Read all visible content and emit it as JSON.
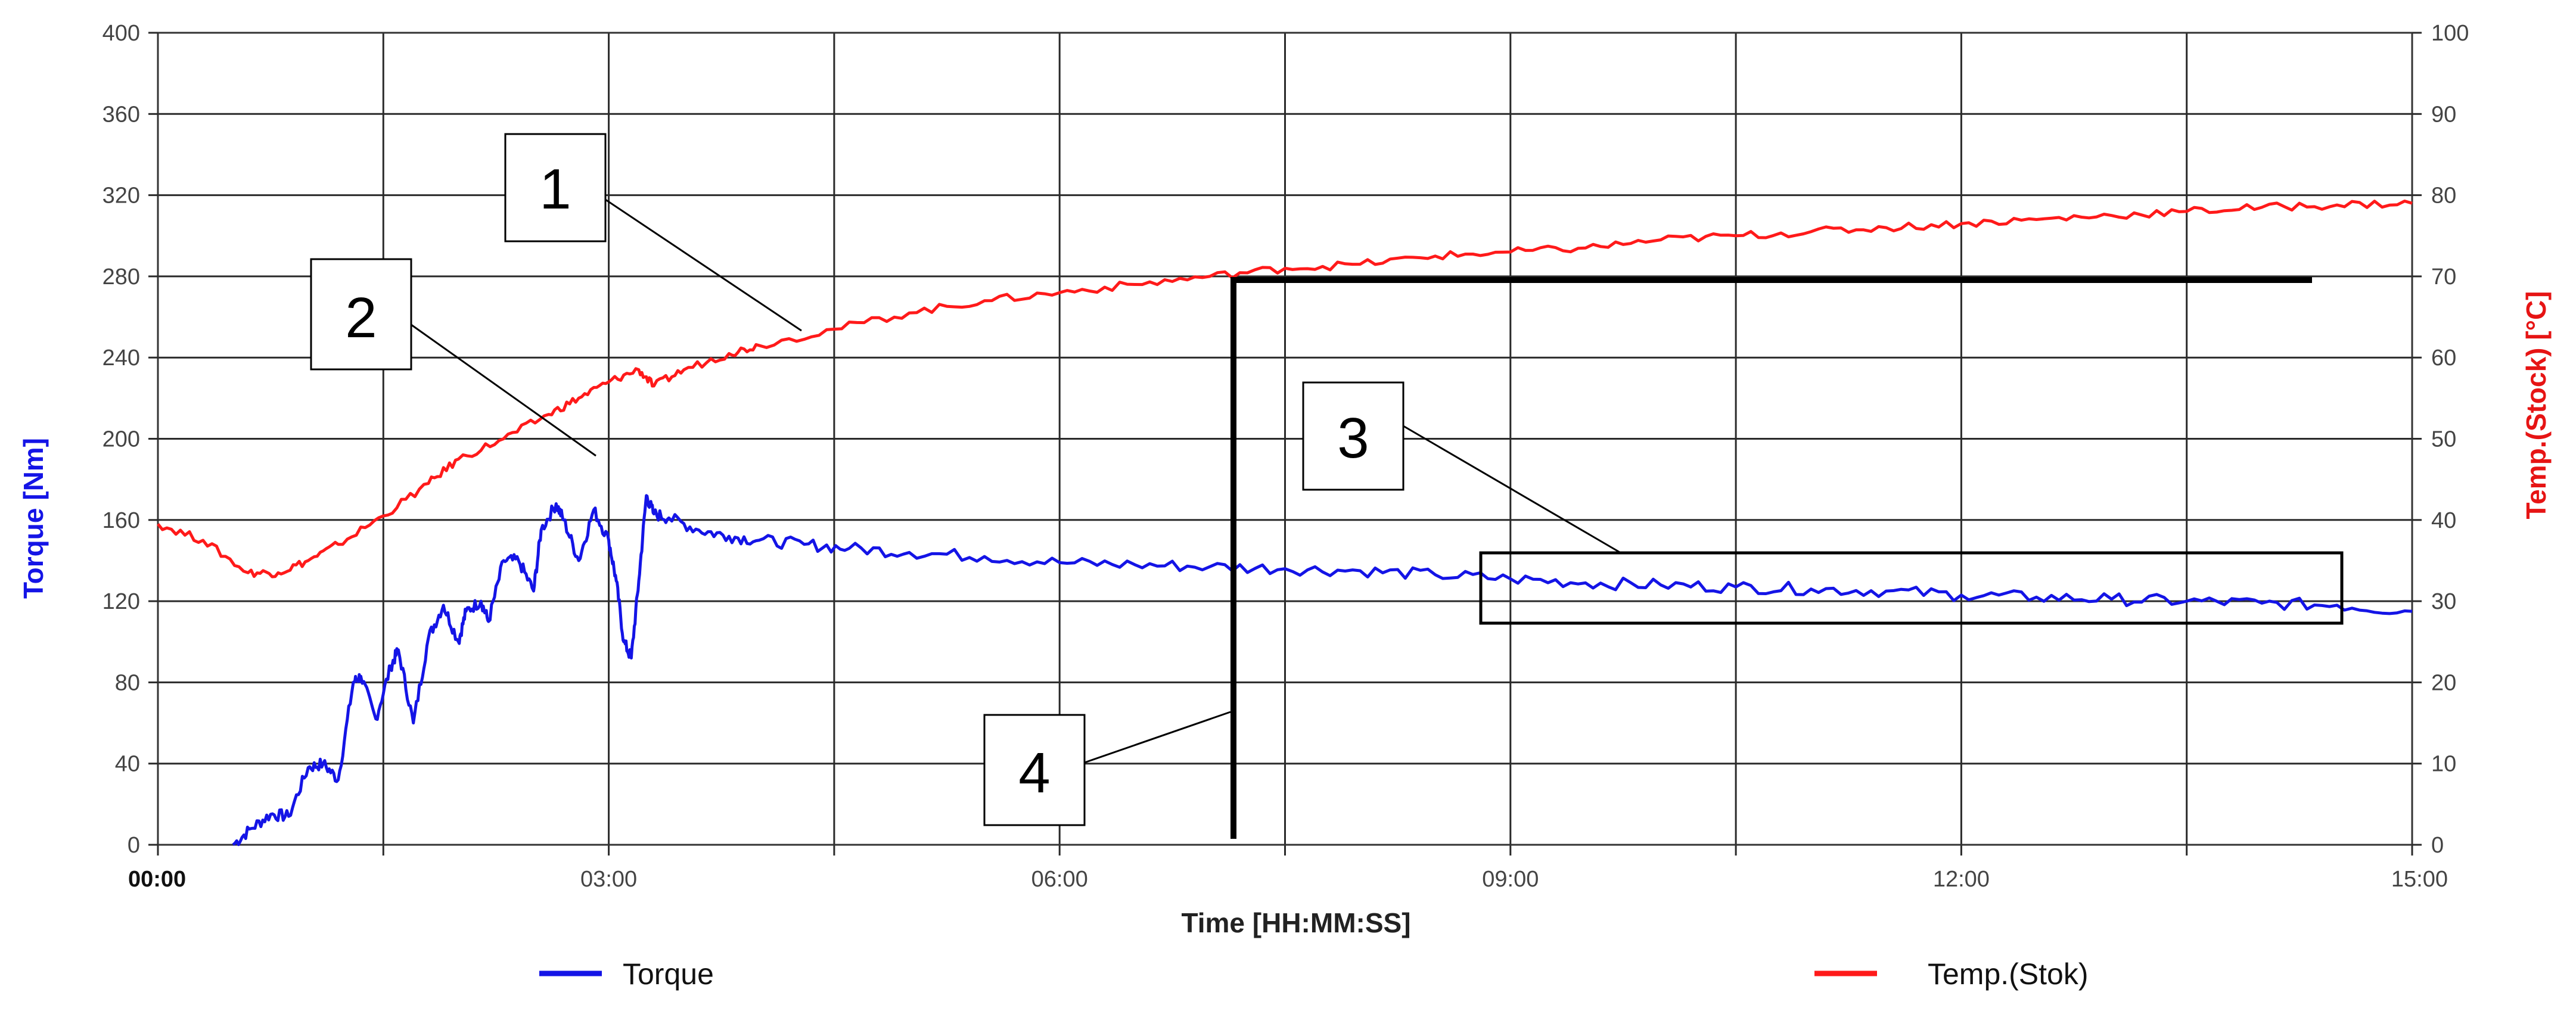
{
  "chart_data": {
    "type": "line",
    "xlabel": "Time [HH:MM:SS]",
    "ylabel_left": "Torque [Nm]",
    "ylabel_right": "Temp.(Stock) [°C]",
    "x_unit": "minutes",
    "xlim": [
      0,
      15
    ],
    "ylim_left": [
      0,
      400
    ],
    "ylim_right": [
      0,
      100
    ],
    "x_ticks": [
      {
        "value": 0,
        "label": "00:00"
      },
      {
        "value": 3,
        "label": "03:00"
      },
      {
        "value": 6,
        "label": "06:00"
      },
      {
        "value": 9,
        "label": "09:00"
      },
      {
        "value": 12,
        "label": "12:00"
      },
      {
        "value": 15,
        "label": "15:00"
      }
    ],
    "y_ticks_left": [
      0,
      40,
      80,
      120,
      160,
      200,
      240,
      280,
      320,
      360,
      400
    ],
    "y_ticks_right": [
      0,
      10,
      20,
      30,
      40,
      50,
      60,
      70,
      80,
      90,
      100
    ],
    "grid": true,
    "legend_position": "bottom",
    "colors": {
      "torque": "#1414e6",
      "temp": "#ff1a1a",
      "annotation": "#000000",
      "left_axis_title": "#1414e6",
      "right_axis_title": "#e61414"
    },
    "series": [
      {
        "name": "Torque",
        "axis": "left",
        "x": [
          0.5,
          0.62,
          0.75,
          0.87,
          1.0,
          1.1,
          1.2,
          1.3,
          1.35,
          1.45,
          1.55,
          1.6,
          1.7,
          1.8,
          1.9,
          2.0,
          2.05,
          2.15,
          2.2,
          2.3,
          2.4,
          2.5,
          2.55,
          2.65,
          2.7,
          2.8,
          2.9,
          3.0,
          3.05,
          3.1,
          3.15,
          3.2,
          3.25,
          3.3,
          3.4,
          3.6,
          3.8,
          4.0,
          4.3,
          4.6,
          5.0,
          5.5,
          6.0,
          6.5,
          7.0,
          7.5,
          8.0,
          8.5,
          9.0,
          9.5,
          10.0,
          10.5,
          11.0,
          11.5,
          12.0,
          12.5,
          13.0,
          13.5,
          14.0,
          14.5,
          15.0
        ],
        "y": [
          0,
          8,
          15,
          14,
          38,
          40,
          32,
          80,
          83,
          62,
          88,
          96,
          60,
          102,
          118,
          100,
          115,
          120,
          110,
          140,
          140,
          125,
          155,
          168,
          160,
          140,
          165,
          150,
          130,
          100,
          92,
          130,
          172,
          163,
          161,
          155,
          152,
          150,
          148,
          146,
          144,
          142,
          139,
          138,
          137,
          136,
          135,
          133,
          131,
          129,
          128,
          127,
          126,
          125,
          123,
          122,
          121,
          120,
          119,
          118,
          115
        ]
      },
      {
        "name": "Temp.(Stok)",
        "axis": "right",
        "x": [
          0.0,
          0.3,
          0.6,
          0.8,
          1.0,
          1.2,
          1.5,
          1.8,
          2.0,
          2.3,
          2.6,
          2.8,
          3.0,
          3.2,
          3.3,
          3.5,
          3.8,
          4.0,
          4.5,
          5.0,
          5.5,
          6.0,
          6.5,
          7.0,
          7.5,
          8.0,
          8.5,
          9.0,
          9.5,
          10.0,
          10.5,
          11.0,
          11.5,
          12.0,
          12.5,
          13.0,
          13.5,
          14.0,
          14.5,
          15.0
        ],
        "y": [
          39.5,
          37.5,
          33.5,
          33.5,
          35,
          37,
          40.5,
          44.5,
          47.5,
          50,
          53,
          55,
          57,
          58.5,
          56.5,
          58.5,
          60.5,
          61.5,
          63.5,
          65.5,
          67,
          68,
          69,
          70,
          71,
          71.5,
          72.5,
          73,
          73.5,
          74.5,
          75,
          75.5,
          76,
          76.5,
          77,
          77.5,
          78,
          78.5,
          78.8,
          79
        ]
      }
    ],
    "annotations": [
      {
        "label": "1"
      },
      {
        "label": "2"
      },
      {
        "label": "3"
      },
      {
        "label": "4"
      }
    ]
  }
}
